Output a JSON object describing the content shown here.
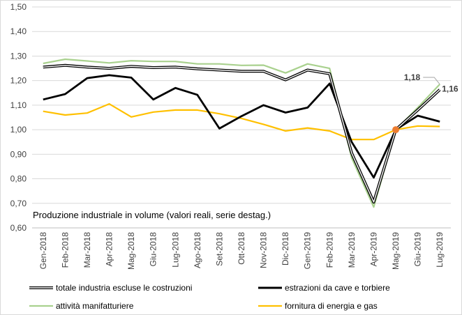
{
  "chart_data": {
    "type": "line",
    "title": "Produzione  industriale in volume (valori reali, serie destag.)",
    "categories": [
      "Gen-2018",
      "Feb-2018",
      "Mar-2018",
      "Apr-2018",
      "Mag-2018",
      "Giu-2018",
      "Lug-2018",
      "Ago-2018",
      "Set-2018",
      "Ott-2018",
      "Nov-2018",
      "Dic-2018",
      "Gen-2019",
      "Feb-2019",
      "Mar-2019",
      "Apr-2019",
      "Mag-2019",
      "Giu-2019",
      "Lug-2019"
    ],
    "ylim": [
      0.6,
      1.5
    ],
    "yticks": [
      "0,60",
      "0,70",
      "0,80",
      "0,90",
      "1,00",
      "1,10",
      "1,20",
      "1,30",
      "1,40",
      "1,50"
    ],
    "grid": true,
    "legend_position": "bottom",
    "series": [
      {
        "name": "totale industria escluse le costruzioni",
        "color": "#000000",
        "style": "double",
        "values": [
          1.255,
          1.262,
          1.255,
          1.25,
          1.258,
          1.253,
          1.255,
          1.248,
          1.243,
          1.238,
          1.238,
          1.203,
          1.243,
          1.228,
          0.905,
          0.705,
          1.0,
          1.08,
          1.163
        ]
      },
      {
        "name": "estrazioni da cave e torbiere",
        "color": "#000000",
        "style": "solid",
        "values": [
          1.123,
          1.145,
          1.21,
          1.222,
          1.212,
          1.123,
          1.17,
          1.142,
          1.005,
          1.055,
          1.1,
          1.07,
          1.09,
          1.188,
          0.95,
          0.805,
          1.0,
          1.057,
          1.033
        ]
      },
      {
        "name": "attività manifatturiere",
        "color": "#a9d18e",
        "style": "solid",
        "values": [
          1.27,
          1.287,
          1.28,
          1.272,
          1.281,
          1.278,
          1.278,
          1.268,
          1.268,
          1.262,
          1.263,
          1.231,
          1.268,
          1.25,
          0.885,
          0.685,
          1.0,
          1.09,
          1.185
        ]
      },
      {
        "name": "fornitura di energia e gas",
        "color": "#ffc000",
        "style": "solid",
        "values": [
          1.075,
          1.06,
          1.068,
          1.105,
          1.052,
          1.072,
          1.08,
          1.08,
          1.065,
          1.046,
          1.022,
          0.995,
          1.007,
          0.995,
          0.96,
          0.96,
          1.0,
          1.015,
          1.013
        ]
      }
    ],
    "annotations": [
      {
        "text": "1,18",
        "series": 2,
        "index": 18
      },
      {
        "text": "1,16",
        "series": 0,
        "index": 18
      }
    ],
    "marker": {
      "index": 16,
      "value": 1.0,
      "color": "#ed7d31"
    }
  }
}
